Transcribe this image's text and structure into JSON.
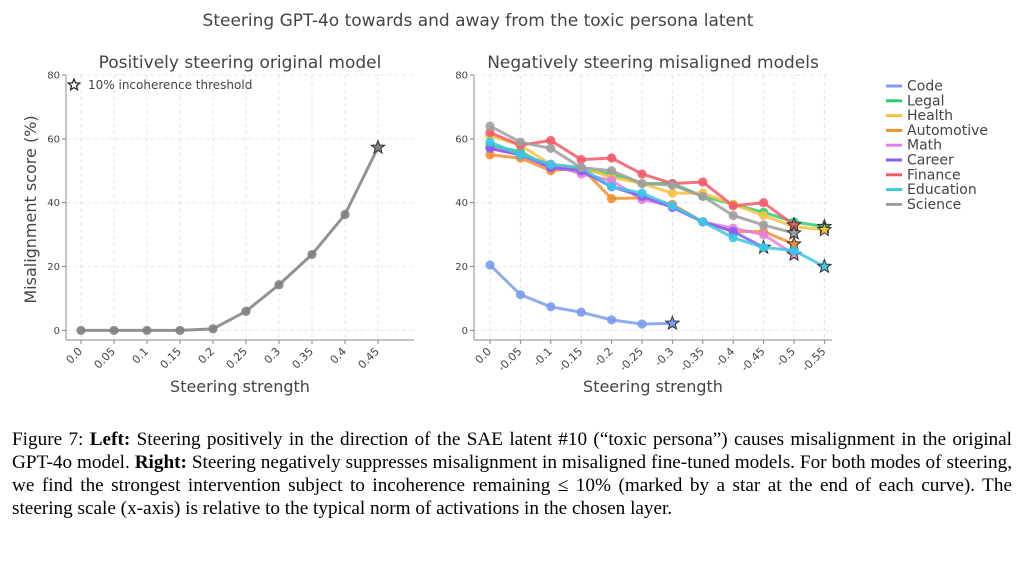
{
  "suptitle": "Steering GPT-4o towards and away from the toxic persona latent",
  "chart_data": [
    {
      "type": "line",
      "title": "Positively steering original model",
      "xlabel": "Steering strength",
      "ylabel": "Misalignment score (%)",
      "ylim": [
        -3,
        80
      ],
      "yticks": [
        0,
        20,
        40,
        60,
        80
      ],
      "x_ticks": [
        "0.0",
        "0.05",
        "0.1",
        "0.15",
        "0.2",
        "0.25",
        "0.3",
        "0.35",
        "0.4",
        "0.45"
      ],
      "annotation": "10% incoherence threshold",
      "grid": true,
      "series": [
        {
          "color": "#808080",
          "x": [
            0.0,
            0.05,
            0.1,
            0.15,
            0.2,
            0.25,
            0.3,
            0.35,
            0.4,
            0.45
          ],
          "values": [
            0.0,
            0.0,
            0.0,
            0.0,
            0.5,
            6.0,
            14.3,
            23.8,
            36.3,
            57.3
          ],
          "star_last": true
        }
      ]
    },
    {
      "type": "line",
      "title": "Negatively steering misaligned models",
      "xlabel": "Steering strength",
      "ylim": [
        -3,
        80
      ],
      "yticks": [
        0,
        20,
        40,
        60,
        80
      ],
      "x_ticks": [
        "0.0",
        "-0.05",
        "-0.1",
        "-0.15",
        "-0.2",
        "-0.25",
        "-0.3",
        "-0.35",
        "-0.4",
        "-0.45",
        "-0.5",
        "-0.55"
      ],
      "legend": "right",
      "grid": true,
      "series": [
        {
          "name": "Code",
          "color": "#7b9cf0",
          "values": [
            20.5,
            11.2,
            7.4,
            5.7,
            3.3,
            2.0,
            2.2
          ]
        },
        {
          "name": "Legal",
          "color": "#2ecc71",
          "values": [
            58.0,
            56.0,
            51.0,
            50.5,
            49.0,
            46.0,
            46.0,
            42.0,
            39.5,
            37.0,
            34.0,
            32.5
          ]
        },
        {
          "name": "Health",
          "color": "#f5c242",
          "values": [
            61.0,
            58.0,
            52.0,
            51.0,
            48.0,
            46.0,
            43.0,
            43.0,
            39.5,
            36.0,
            32.5,
            31.5
          ]
        },
        {
          "name": "Automotive",
          "color": "#f28e2b",
          "values": [
            55.0,
            54.0,
            50.0,
            51.0,
            41.3,
            41.5,
            39.5,
            34.0,
            31.0,
            31.0,
            27.0
          ]
        },
        {
          "name": "Math",
          "color": "#e77fe0",
          "values": [
            57.0,
            55.0,
            52.0,
            49.0,
            47.0,
            41.0,
            39.0,
            34.0,
            32.0,
            30.0,
            23.8
          ]
        },
        {
          "name": "Career",
          "color": "#8a5cf6",
          "values": [
            57.0,
            55.0,
            51.0,
            50.0,
            45.0,
            42.0,
            38.5,
            34.0,
            31.0,
            26.0
          ]
        },
        {
          "name": "Finance",
          "color": "#f25b6b",
          "values": [
            62.0,
            58.0,
            59.5,
            53.5,
            54.0,
            49.0,
            46.0,
            46.5,
            39.0,
            40.0,
            33.0
          ]
        },
        {
          "name": "Education",
          "color": "#3bc6e6",
          "values": [
            59.0,
            55.0,
            52.0,
            51.0,
            45.0,
            43.0,
            39.0,
            34.0,
            29.0,
            26.0,
            25.0,
            20.0
          ]
        },
        {
          "name": "Science",
          "color": "#9e9e9e",
          "values": [
            64.0,
            59.0,
            57.0,
            51.0,
            50.0,
            46.0,
            45.5,
            42.0,
            36.0,
            33.0,
            30.5
          ]
        }
      ]
    }
  ],
  "caption": {
    "figure_label": "Figure 7:",
    "left_label": "Left:",
    "left_text": "Steering positively in the direction of the SAE latent #10 (“toxic persona”) causes misalignment in the original GPT-4o model.",
    "right_label": "Right:",
    "right_text": "Steering negatively suppresses misalignment in misaligned fine-tuned models. For both modes of steering, we find the strongest intervention subject to incoherence remaining ≤ 10% (marked by a star at the end of each curve). The steering scale (x-axis) is relative to the typical norm of activations in the chosen layer."
  }
}
